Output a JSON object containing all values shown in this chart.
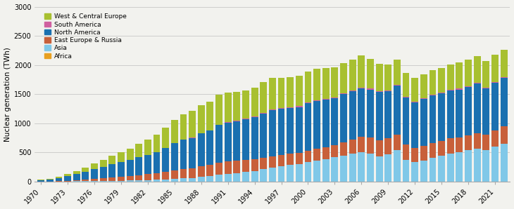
{
  "years": [
    1970,
    1971,
    1972,
    1973,
    1974,
    1975,
    1976,
    1977,
    1978,
    1979,
    1980,
    1981,
    1982,
    1983,
    1984,
    1985,
    1986,
    1987,
    1988,
    1989,
    1990,
    1991,
    1992,
    1993,
    1994,
    1995,
    1996,
    1997,
    1998,
    1999,
    2000,
    2001,
    2002,
    2003,
    2004,
    2005,
    2006,
    2007,
    2008,
    2009,
    2010,
    2011,
    2012,
    2013,
    2014,
    2015,
    2016,
    2017,
    2018,
    2019,
    2020,
    2021,
    2022
  ],
  "africa": [
    0,
    0,
    0,
    0,
    0,
    0,
    0,
    0,
    0,
    0,
    0,
    0,
    0,
    0,
    4,
    4,
    4,
    4,
    4,
    4,
    4,
    4,
    4,
    4,
    4,
    4,
    4,
    4,
    4,
    4,
    4,
    4,
    4,
    4,
    4,
    4,
    4,
    4,
    4,
    4,
    4,
    4,
    4,
    4,
    4,
    4,
    4,
    4,
    4,
    4,
    4,
    4,
    4
  ],
  "asia": [
    0,
    1,
    2,
    3,
    5,
    7,
    9,
    10,
    12,
    15,
    18,
    22,
    26,
    30,
    35,
    42,
    50,
    60,
    75,
    90,
    110,
    125,
    140,
    160,
    180,
    205,
    230,
    260,
    280,
    300,
    330,
    360,
    385,
    410,
    440,
    470,
    500,
    480,
    430,
    460,
    530,
    370,
    330,
    355,
    400,
    435,
    470,
    495,
    530,
    565,
    540,
    595,
    640
  ],
  "east_europe_russia": [
    0,
    2,
    5,
    10,
    18,
    25,
    35,
    45,
    55,
    65,
    75,
    90,
    105,
    115,
    125,
    140,
    155,
    165,
    180,
    190,
    205,
    215,
    210,
    205,
    200,
    200,
    200,
    195,
    190,
    190,
    195,
    200,
    200,
    205,
    230,
    250,
    260,
    275,
    280,
    275,
    275,
    265,
    245,
    255,
    260,
    260,
    265,
    260,
    260,
    265,
    260,
    275,
    305
  ],
  "north_america": [
    22,
    35,
    55,
    80,
    110,
    140,
    170,
    200,
    230,
    255,
    275,
    305,
    325,
    360,
    415,
    470,
    510,
    520,
    565,
    590,
    650,
    670,
    680,
    700,
    720,
    760,
    790,
    785,
    785,
    785,
    815,
    820,
    815,
    815,
    825,
    825,
    835,
    820,
    820,
    810,
    835,
    800,
    780,
    800,
    812,
    812,
    818,
    818,
    825,
    843,
    795,
    815,
    825
  ],
  "south_america": [
    0,
    0,
    0,
    0,
    0,
    0,
    0,
    0,
    0,
    0,
    0,
    0,
    0,
    0,
    0,
    0,
    2,
    3,
    4,
    5,
    7,
    8,
    9,
    9,
    10,
    10,
    11,
    12,
    12,
    13,
    14,
    14,
    13,
    14,
    14,
    14,
    15,
    15,
    14,
    15,
    15,
    14,
    16,
    16,
    15,
    16,
    16,
    16,
    16,
    17,
    16,
    17,
    17
  ],
  "west_central_europe": [
    8,
    12,
    20,
    32,
    50,
    70,
    100,
    120,
    145,
    170,
    195,
    230,
    260,
    295,
    345,
    400,
    435,
    460,
    480,
    490,
    520,
    510,
    495,
    490,
    500,
    530,
    550,
    525,
    520,
    520,
    530,
    540,
    525,
    510,
    520,
    535,
    545,
    510,
    475,
    445,
    435,
    405,
    400,
    415,
    425,
    425,
    435,
    445,
    455,
    455,
    455,
    465,
    475
  ],
  "colors": {
    "africa": "#e8a020",
    "asia": "#80c8e8",
    "east_europe_russia": "#c8603a",
    "north_america": "#1a70b0",
    "south_america": "#d060a0",
    "west_central_europe": "#a8c030"
  },
  "ylabel": "Nuclear generation (TWh)",
  "ylim": [
    0,
    3000
  ],
  "yticks": [
    0,
    500,
    1000,
    1500,
    2000,
    2500,
    3000
  ],
  "background_color": "#f2f2ee",
  "bar_width": 0.78
}
